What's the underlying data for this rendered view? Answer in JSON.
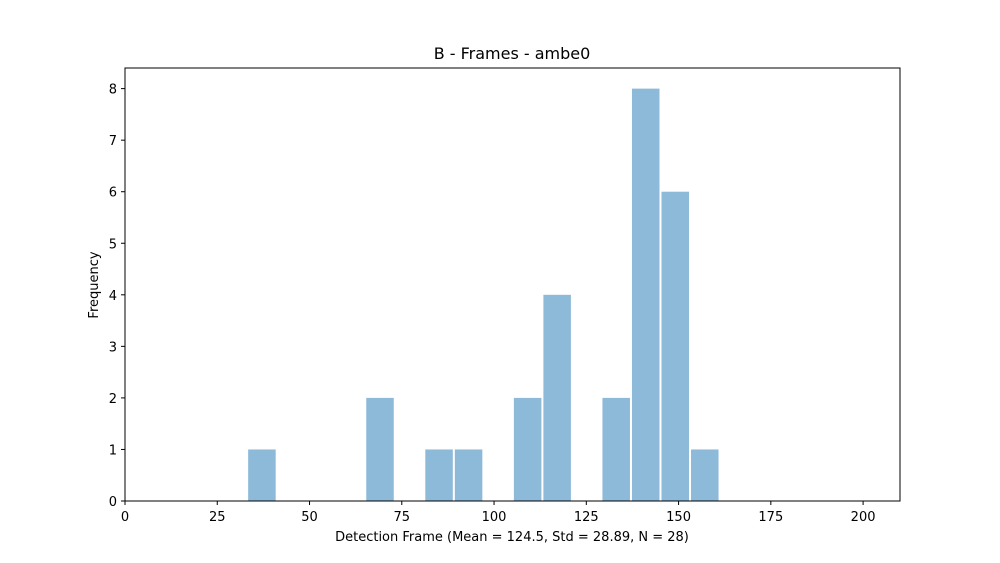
{
  "chart_data": {
    "type": "bar",
    "title": "B - Frames - ambe0",
    "xlabel": "Detection Frame (Mean = 124.5, Std = 28.89, N = 28)",
    "ylabel": "Frequency",
    "xlim": [
      0,
      210
    ],
    "ylim": [
      0,
      8.4
    ],
    "xticks": [
      0,
      25,
      50,
      75,
      100,
      125,
      150,
      175,
      200
    ],
    "yticks": [
      0,
      1,
      2,
      3,
      4,
      5,
      6,
      7,
      8
    ],
    "bars": [
      {
        "x0": 33.1,
        "x1": 41.1,
        "value": 1
      },
      {
        "x0": 65.1,
        "x1": 73.1,
        "value": 2
      },
      {
        "x0": 81.1,
        "x1": 89.1,
        "value": 1
      },
      {
        "x0": 89.1,
        "x1": 97.1,
        "value": 1
      },
      {
        "x0": 105.1,
        "x1": 113.1,
        "value": 2
      },
      {
        "x0": 113.1,
        "x1": 121.1,
        "value": 4
      },
      {
        "x0": 129.1,
        "x1": 137.1,
        "value": 2
      },
      {
        "x0": 137.1,
        "x1": 145.1,
        "value": 8
      },
      {
        "x0": 145.1,
        "x1": 153.1,
        "value": 6
      },
      {
        "x0": 153.1,
        "x1": 161.1,
        "value": 1
      }
    ],
    "bar_color": "#8ebad9",
    "grid": false,
    "legend": "none"
  }
}
